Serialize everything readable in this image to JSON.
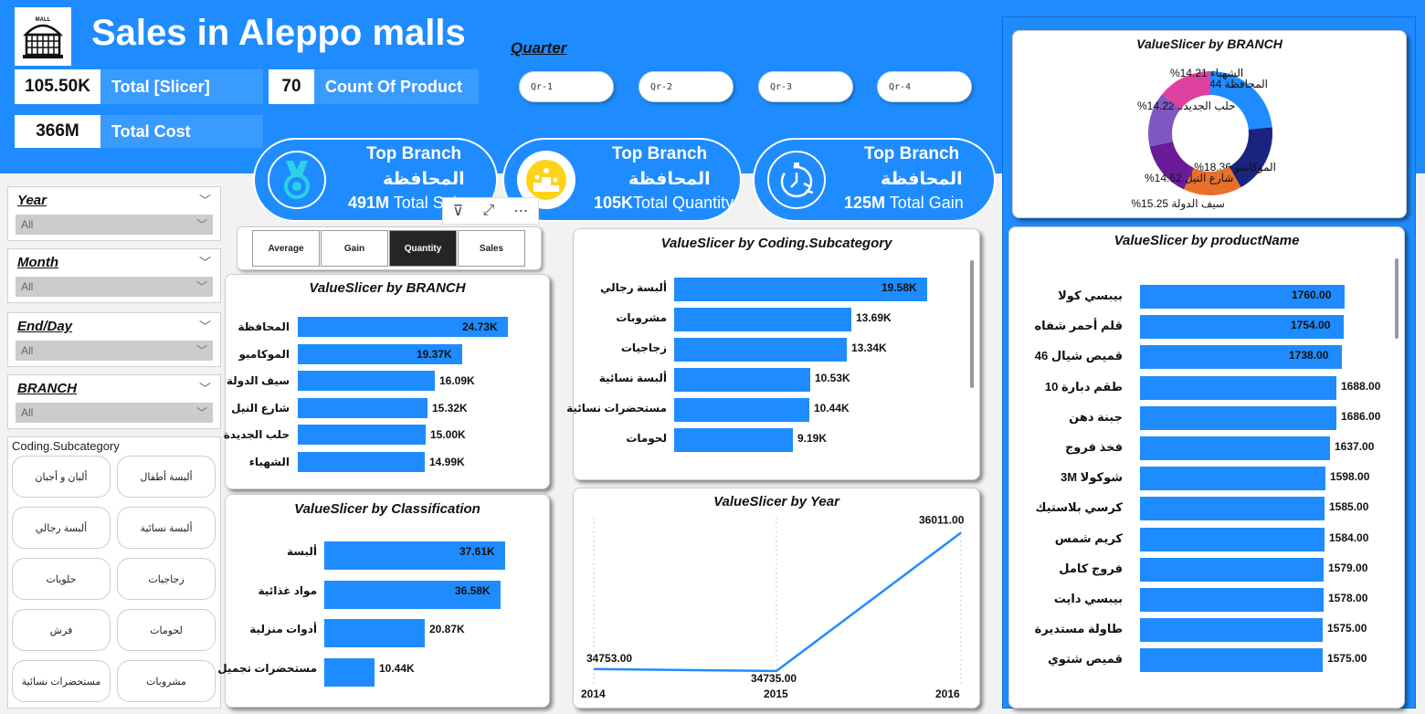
{
  "header": {
    "title": "Sales in Aleppo malls",
    "logo_text": "MALL"
  },
  "kpis": {
    "total_slicer_value": "105.50K",
    "total_slicer_label": "Total [Slicer]",
    "count_value": "70",
    "count_label": "Count Of Product",
    "total_cost_value": "366M",
    "total_cost_label": "Total Cost"
  },
  "quarter": {
    "title": "Quarter",
    "buttons": [
      "Qr-1",
      "Qr-2",
      "Qr-3",
      "Qr-4"
    ]
  },
  "cards": [
    {
      "title": "Top Branch",
      "branch": "المحافظة",
      "value": "491M",
      "measure": "Total Sales"
    },
    {
      "title": "Top Branch",
      "branch": "المحافظة",
      "value": "105K",
      "measure": "Total Quantity"
    },
    {
      "title": "Top Branch",
      "branch": "المحافظة",
      "value": "125M",
      "measure": "Total Gain"
    }
  ],
  "slicers": [
    {
      "label": "Year",
      "value": "All"
    },
    {
      "label": "Month",
      "value": "All"
    },
    {
      "label": "End/Day",
      "value": "All"
    },
    {
      "label": "BRANCH",
      "value": "All"
    }
  ],
  "subcategory_slicer": {
    "title": "Coding.Subcategory",
    "items": [
      "ألبان و أجبان",
      "ألبسة أطفال",
      "ألبسة رجالي",
      "ألبسة نسائية",
      "حلويات",
      "زجاجيات",
      "فرش",
      "لحومات",
      "مستحضرات نسائية",
      "مشروبات"
    ]
  },
  "tabs": {
    "items": [
      "Average",
      "Gain",
      "Quantity",
      "Sales"
    ],
    "active": "Quantity"
  },
  "toolbar": {
    "filter_icon": "⊽",
    "focus_icon": "⤢",
    "more_icon": "⋯"
  },
  "colors": {
    "accent": "#1e8cff",
    "dark_blue": "#1a237e",
    "purple": "#6a1b9a",
    "orange": "#e8702a",
    "violet": "#7e57c2",
    "pink": "#e040a0"
  },
  "chart_data": [
    {
      "type": "bar",
      "orientation": "horizontal",
      "title": "ValueSlicer by BRANCH",
      "categories": [
        "المحافظة",
        "الموكامبو",
        "سيف الدولة",
        "شارع النيل",
        "حلب الجديدة",
        "الشهباء"
      ],
      "values": [
        24.73,
        19.37,
        16.09,
        15.32,
        15.0,
        14.99
      ],
      "labels": [
        "24.73K",
        "19.37K",
        "16.09K",
        "15.32K",
        "15.00K",
        "14.99K"
      ],
      "xlim": [
        0,
        24.73
      ]
    },
    {
      "type": "bar",
      "orientation": "horizontal",
      "title": "ValueSlicer by Classification",
      "categories": [
        "ألبسة",
        "مواد غذائية",
        "أدوات منزلية",
        "مستحضرات تجميل"
      ],
      "values": [
        37.61,
        36.58,
        20.87,
        10.44
      ],
      "labels": [
        "37.61K",
        "36.58K",
        "20.87K",
        "10.44K"
      ],
      "xlim": [
        0,
        37.61
      ]
    },
    {
      "type": "bar",
      "orientation": "horizontal",
      "title": "ValueSlicer by Coding.Subcategory",
      "categories": [
        "ألبسة رجالي",
        "مشروبات",
        "زجاجيات",
        "ألبسة نسائية",
        "مستحضرات نسائية",
        "لحومات"
      ],
      "values": [
        19.58,
        13.69,
        13.34,
        10.53,
        10.44,
        9.19
      ],
      "labels": [
        "19.58K",
        "13.69K",
        "13.34K",
        "10.53K",
        "10.44K",
        "9.19K"
      ],
      "xlim": [
        0,
        19.58
      ]
    },
    {
      "type": "line",
      "title": "ValueSlicer by Year",
      "x": [
        "2014",
        "2015",
        "2016"
      ],
      "values": [
        34753.0,
        34735.0,
        36011.0
      ],
      "labels": [
        "34753.00",
        "34735.00",
        "36011.00"
      ],
      "ylim": [
        34650,
        36150
      ]
    },
    {
      "type": "pie",
      "variant": "donut",
      "title": "ValueSlicer by BRANCH",
      "categories": [
        "المحافظة",
        "الموكامبو",
        "سيف الدولة",
        "شارع النيل",
        "حلب الجديدة",
        "الشهباء"
      ],
      "values": [
        23.44,
        18.36,
        15.25,
        14.52,
        14.22,
        14.21
      ],
      "labels": [
        "المحافظة 23.44%",
        "الموكامبو 18.36%",
        "سيف الدولة 15.25%",
        "شارع النيل 14.52%",
        "حلب الجديدة 14.22%",
        "الشهباء 14.21%"
      ]
    },
    {
      "type": "bar",
      "orientation": "horizontal",
      "title": "ValueSlicer by productName",
      "categories": [
        "بيبسي كولا",
        "قلم أحمر شفاه",
        "قميص شيال 46",
        "طقم دبارة 10",
        "جبنة دهن",
        "فخذ فروج",
        "شوكولا 3M",
        "كرسي بلاستيك",
        "كريم شمس",
        "فروج كامل",
        "بيبسي دايت",
        "طاولة مستديرة",
        "قميص شتوي"
      ],
      "values": [
        1760.0,
        1754.0,
        1738.0,
        1688.0,
        1686.0,
        1637.0,
        1598.0,
        1585.0,
        1584.0,
        1579.0,
        1578.0,
        1575.0,
        1575.0
      ],
      "labels": [
        "1760.00",
        "1754.00",
        "1738.00",
        "1688.00",
        "1686.00",
        "1637.00",
        "1598.00",
        "1585.00",
        "1584.00",
        "1579.00",
        "1578.00",
        "1575.00",
        "1575.00"
      ],
      "xlim": [
        0,
        1760
      ]
    }
  ]
}
